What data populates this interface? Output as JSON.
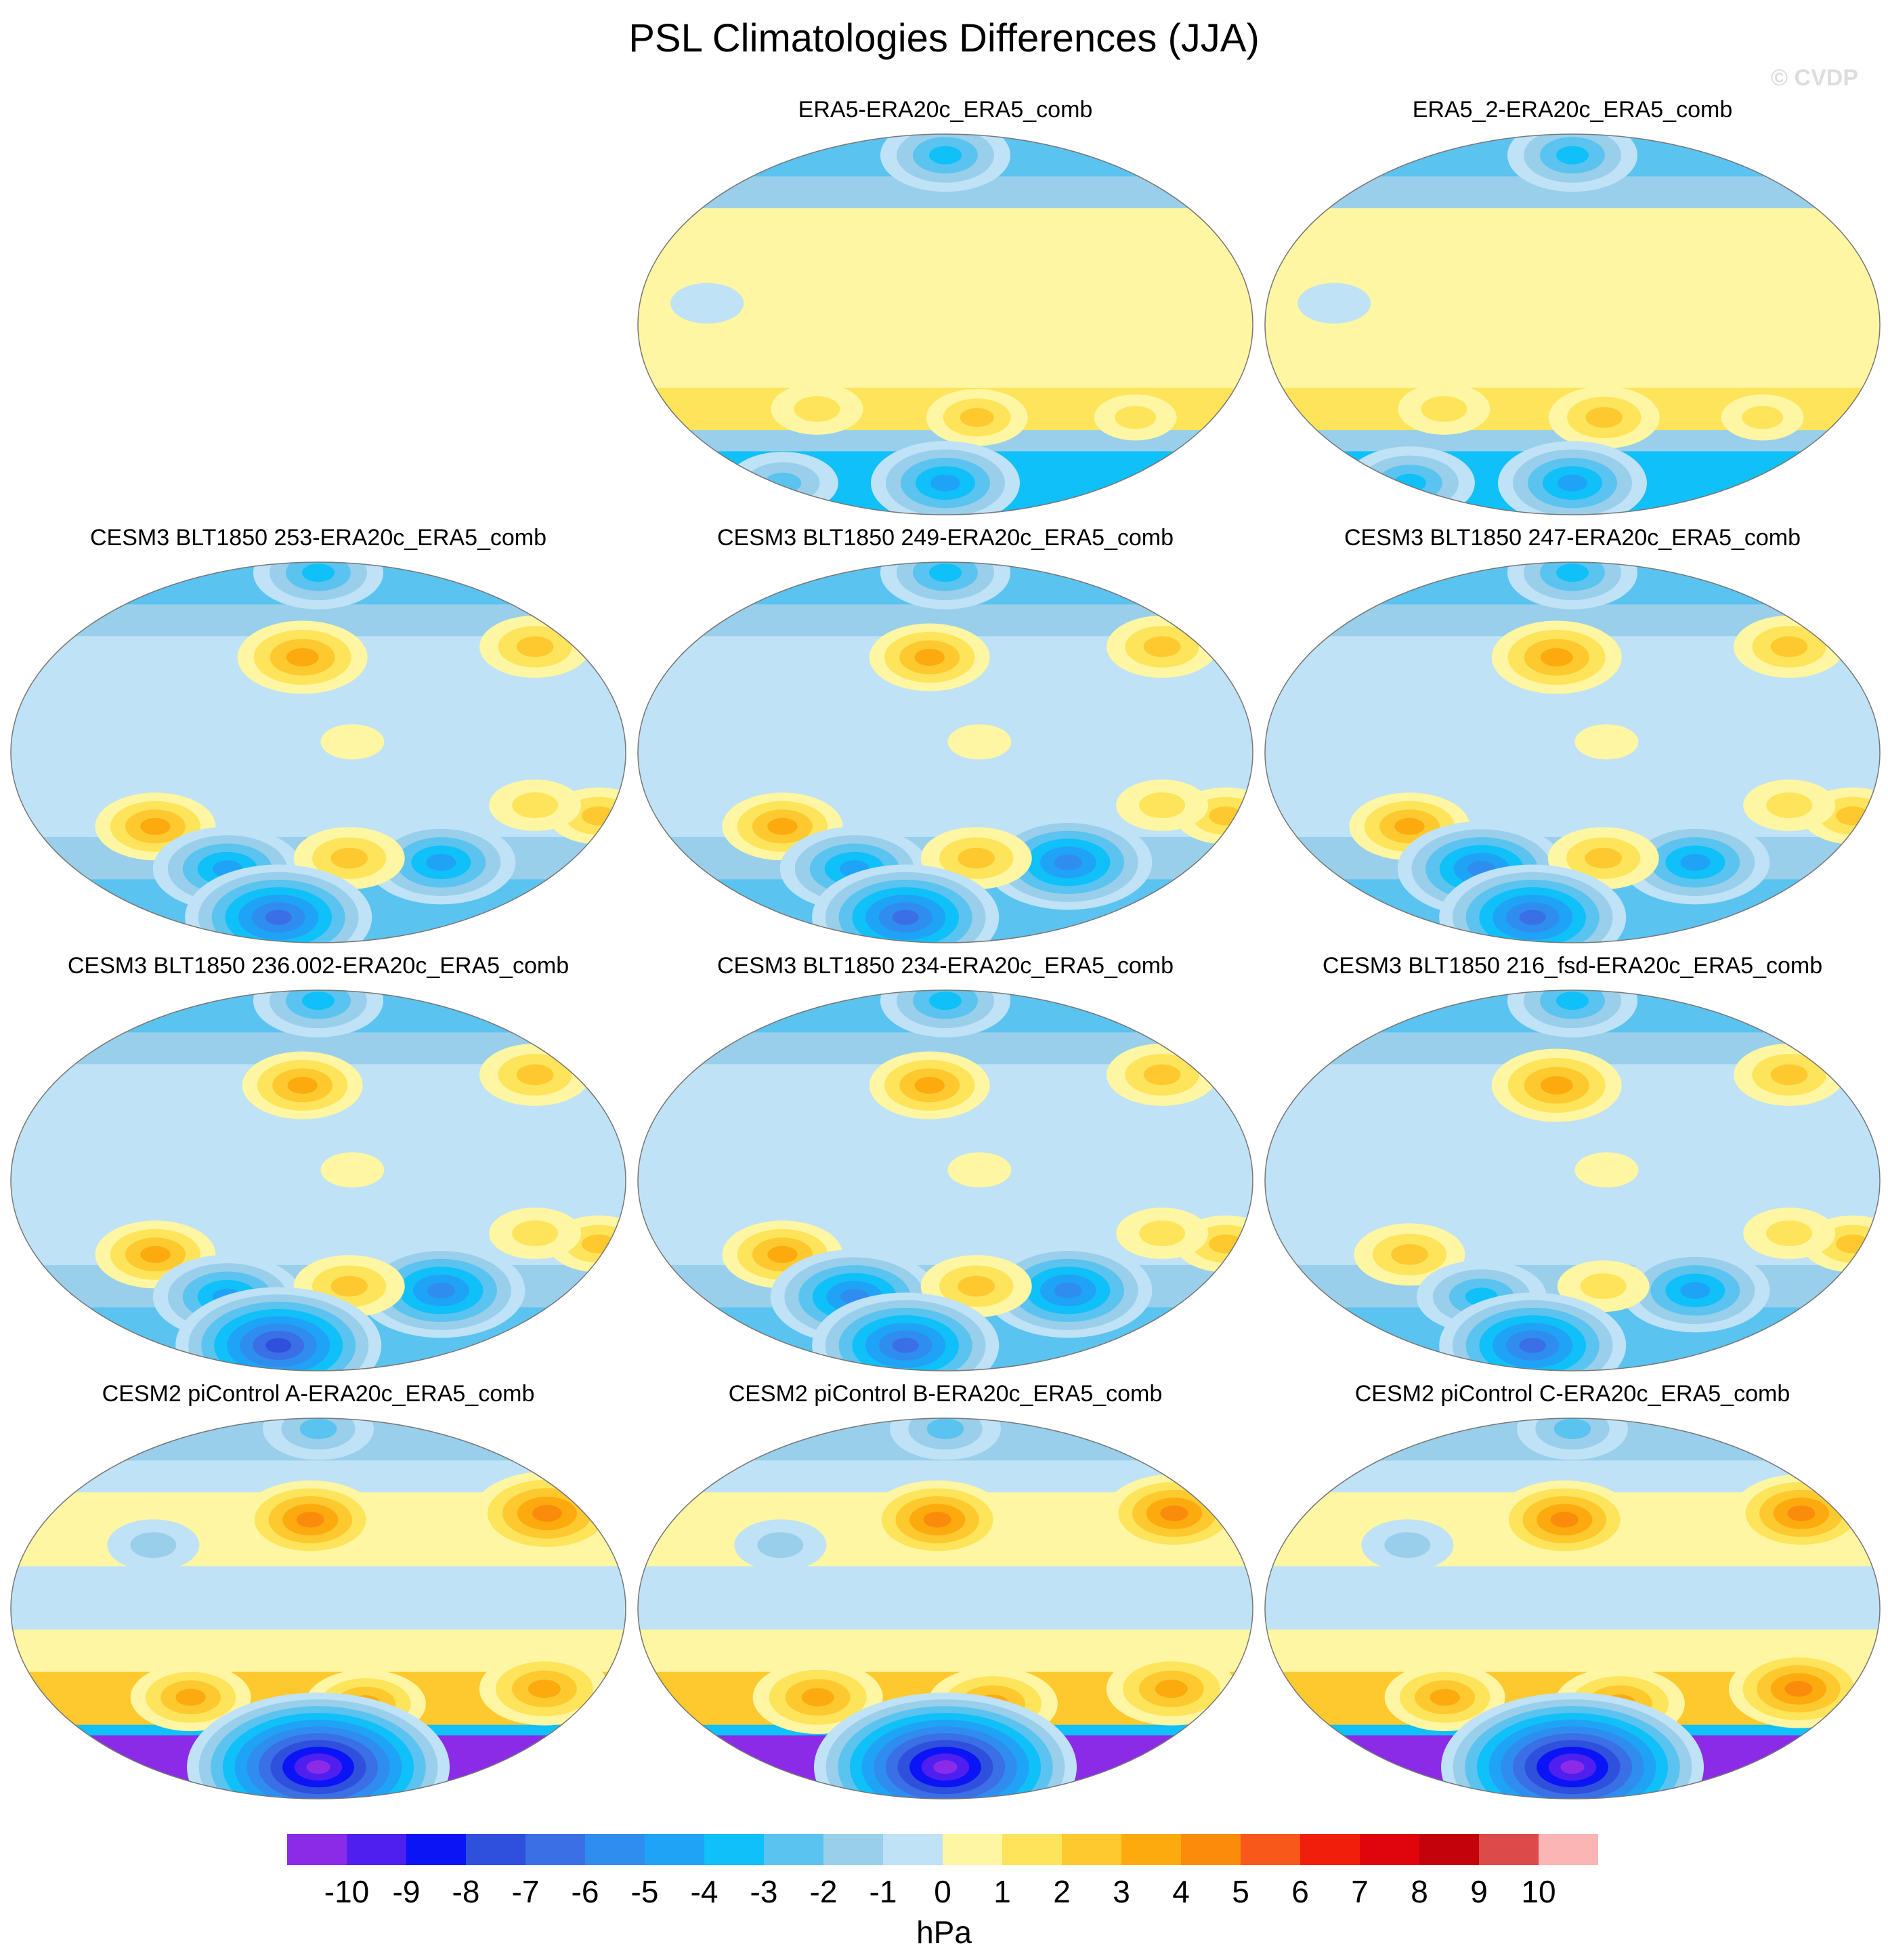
{
  "title": "PSL Climatologies Differences (JJA)",
  "watermark": "© CVDP",
  "chart_data": {
    "type": "heatmap",
    "projection": "Robinson-like global, Pacific centered",
    "season": "JJA",
    "panels": [
      {
        "title": "ERA5-ERA20c_ERA5_comb",
        "pattern": "obs",
        "features": [
          {
            "lon": 300,
            "lat": -44,
            "value": 1.5
          },
          {
            "lon": 200,
            "lat": -44,
            "value": 2.5
          },
          {
            "lon": 100,
            "lat": -40,
            "value": 2
          },
          {
            "lon": 180,
            "lat": -75,
            "value": -5
          },
          {
            "lon": 60,
            "lat": -75,
            "value": -3
          },
          {
            "lon": 180,
            "lat": 80,
            "value": -4
          },
          {
            "lon": 200,
            "lat": 30,
            "value": 0.5
          },
          {
            "lon": 40,
            "lat": 10,
            "value": -1
          }
        ]
      },
      {
        "title": "ERA5_2-ERA20c_ERA5_comb",
        "pattern": "obs",
        "features": [
          {
            "lon": 300,
            "lat": -44,
            "value": 1.5
          },
          {
            "lon": 200,
            "lat": -44,
            "value": 3
          },
          {
            "lon": 100,
            "lat": -40,
            "value": 2
          },
          {
            "lon": 180,
            "lat": -75,
            "value": -5
          },
          {
            "lon": 60,
            "lat": -75,
            "value": -4
          },
          {
            "lon": 180,
            "lat": 80,
            "value": -4
          },
          {
            "lon": 200,
            "lat": 30,
            "value": 0.5
          },
          {
            "lon": 40,
            "lat": 10,
            "value": -1
          }
        ]
      },
      {
        "title": "CESM3 BLT1850 253-ERA20c_ERA5_comb",
        "pattern": "cesm3",
        "features": [
          {
            "lon": 170,
            "lat": 45,
            "value": 4
          },
          {
            "lon": 320,
            "lat": 50,
            "value": 3
          },
          {
            "lon": 80,
            "lat": -35,
            "value": 3.5
          },
          {
            "lon": 350,
            "lat": -30,
            "value": 2.5
          },
          {
            "lon": 310,
            "lat": -25,
            "value": 2
          },
          {
            "lon": 200,
            "lat": 5,
            "value": 0.5
          },
          {
            "lon": 120,
            "lat": -55,
            "value": -5
          },
          {
            "lon": 260,
            "lat": -52,
            "value": -5
          },
          {
            "lon": 200,
            "lat": -50,
            "value": 3
          },
          {
            "lon": 150,
            "lat": -78,
            "value": -7
          },
          {
            "lon": 180,
            "lat": 85,
            "value": -4
          }
        ]
      },
      {
        "title": "CESM3 BLT1850 249-ERA20c_ERA5_comb",
        "pattern": "cesm3",
        "features": [
          {
            "lon": 170,
            "lat": 45,
            "value": 3.5
          },
          {
            "lon": 320,
            "lat": 50,
            "value": 3
          },
          {
            "lon": 80,
            "lat": -35,
            "value": 3.5
          },
          {
            "lon": 350,
            "lat": -30,
            "value": 2.5
          },
          {
            "lon": 310,
            "lat": -25,
            "value": 2
          },
          {
            "lon": 200,
            "lat": 5,
            "value": 0.5
          },
          {
            "lon": 120,
            "lat": -55,
            "value": -5
          },
          {
            "lon": 260,
            "lat": -52,
            "value": -6
          },
          {
            "lon": 200,
            "lat": -50,
            "value": 3
          },
          {
            "lon": 150,
            "lat": -78,
            "value": -7
          },
          {
            "lon": 180,
            "lat": 85,
            "value": -4
          }
        ]
      },
      {
        "title": "CESM3 BLT1850 247-ERA20c_ERA5_comb",
        "pattern": "cesm3",
        "features": [
          {
            "lon": 170,
            "lat": 45,
            "value": 4
          },
          {
            "lon": 320,
            "lat": 50,
            "value": 3
          },
          {
            "lon": 80,
            "lat": -35,
            "value": 3.5
          },
          {
            "lon": 350,
            "lat": -30,
            "value": 2.5
          },
          {
            "lon": 310,
            "lat": -25,
            "value": 2
          },
          {
            "lon": 200,
            "lat": 5,
            "value": 0.5
          },
          {
            "lon": 120,
            "lat": -55,
            "value": -6
          },
          {
            "lon": 260,
            "lat": -52,
            "value": -5
          },
          {
            "lon": 200,
            "lat": -50,
            "value": 3
          },
          {
            "lon": 150,
            "lat": -78,
            "value": -7
          },
          {
            "lon": 180,
            "lat": 85,
            "value": -4
          }
        ]
      },
      {
        "title": "CESM3 BLT1850 236.002-ERA20c_ERA5_comb",
        "pattern": "cesm3",
        "features": [
          {
            "lon": 170,
            "lat": 45,
            "value": 3.5
          },
          {
            "lon": 320,
            "lat": 50,
            "value": 3
          },
          {
            "lon": 80,
            "lat": -35,
            "value": 3.5
          },
          {
            "lon": 350,
            "lat": -30,
            "value": 2.5
          },
          {
            "lon": 310,
            "lat": -25,
            "value": 2
          },
          {
            "lon": 200,
            "lat": 5,
            "value": 0.5
          },
          {
            "lon": 120,
            "lat": -55,
            "value": -5
          },
          {
            "lon": 260,
            "lat": -52,
            "value": -6
          },
          {
            "lon": 200,
            "lat": -50,
            "value": 3
          },
          {
            "lon": 150,
            "lat": -78,
            "value": -8
          },
          {
            "lon": 180,
            "lat": 85,
            "value": -4
          }
        ]
      },
      {
        "title": "CESM3 BLT1850 234-ERA20c_ERA5_comb",
        "pattern": "cesm3",
        "features": [
          {
            "lon": 170,
            "lat": 45,
            "value": 3.5
          },
          {
            "lon": 320,
            "lat": 50,
            "value": 3
          },
          {
            "lon": 80,
            "lat": -35,
            "value": 3.5
          },
          {
            "lon": 350,
            "lat": -30,
            "value": 2.5
          },
          {
            "lon": 310,
            "lat": -25,
            "value": 2
          },
          {
            "lon": 200,
            "lat": 5,
            "value": 0.5
          },
          {
            "lon": 120,
            "lat": -55,
            "value": -6
          },
          {
            "lon": 260,
            "lat": -52,
            "value": -6
          },
          {
            "lon": 200,
            "lat": -50,
            "value": 3
          },
          {
            "lon": 150,
            "lat": -78,
            "value": -7
          },
          {
            "lon": 180,
            "lat": 85,
            "value": -4
          }
        ]
      },
      {
        "title": "CESM3 BLT1850 216_fsd-ERA20c_ERA5_comb",
        "pattern": "cesm3",
        "features": [
          {
            "lon": 170,
            "lat": 45,
            "value": 4
          },
          {
            "lon": 320,
            "lat": 50,
            "value": 3
          },
          {
            "lon": 80,
            "lat": -35,
            "value": 3
          },
          {
            "lon": 350,
            "lat": -30,
            "value": 2.5
          },
          {
            "lon": 310,
            "lat": -25,
            "value": 2
          },
          {
            "lon": 200,
            "lat": 5,
            "value": 0.5
          },
          {
            "lon": 120,
            "lat": -55,
            "value": -4
          },
          {
            "lon": 260,
            "lat": -52,
            "value": -5
          },
          {
            "lon": 200,
            "lat": -50,
            "value": 2
          },
          {
            "lon": 150,
            "lat": -78,
            "value": -7
          },
          {
            "lon": 180,
            "lat": 85,
            "value": -4
          }
        ]
      },
      {
        "title": "CESM2 piControl A-ERA20c_ERA5_comb",
        "pattern": "cesm2",
        "features": [
          {
            "lon": 175,
            "lat": 42,
            "value": 4.5
          },
          {
            "lon": 325,
            "lat": 45,
            "value": 5
          },
          {
            "lon": 100,
            "lat": -42,
            "value": 3.5
          },
          {
            "lon": 210,
            "lat": -45,
            "value": 3.5
          },
          {
            "lon": 320,
            "lat": -38,
            "value": 4
          },
          {
            "lon": 180,
            "lat": -75,
            "value": -11
          },
          {
            "lon": 180,
            "lat": 85,
            "value": -3
          },
          {
            "lon": 80,
            "lat": 30,
            "value": -2
          }
        ]
      },
      {
        "title": "CESM2 piControl B-ERA20c_ERA5_comb",
        "pattern": "cesm2",
        "features": [
          {
            "lon": 175,
            "lat": 42,
            "value": 4.5
          },
          {
            "lon": 325,
            "lat": 45,
            "value": 4.5
          },
          {
            "lon": 100,
            "lat": -42,
            "value": 4
          },
          {
            "lon": 210,
            "lat": -45,
            "value": 4
          },
          {
            "lon": 320,
            "lat": -38,
            "value": 4
          },
          {
            "lon": 180,
            "lat": -75,
            "value": -11
          },
          {
            "lon": 180,
            "lat": 85,
            "value": -3
          },
          {
            "lon": 80,
            "lat": 30,
            "value": -2
          }
        ]
      },
      {
        "title": "CESM2 piControl C-ERA20c_ERA5_comb",
        "pattern": "cesm2",
        "features": [
          {
            "lon": 175,
            "lat": 42,
            "value": 4.5
          },
          {
            "lon": 325,
            "lat": 45,
            "value": 4.5
          },
          {
            "lon": 100,
            "lat": -42,
            "value": 3.5
          },
          {
            "lon": 210,
            "lat": -45,
            "value": 4
          },
          {
            "lon": 320,
            "lat": -38,
            "value": 4.5
          },
          {
            "lon": 180,
            "lat": -75,
            "value": -11
          },
          {
            "lon": 180,
            "lat": 85,
            "value": -3
          },
          {
            "lon": 80,
            "lat": 30,
            "value": -2
          }
        ]
      }
    ],
    "colorbar": {
      "unit": "hPa",
      "tick_labels": [
        "-10",
        "-9",
        "-8",
        "-7",
        "-6",
        "-5",
        "-4",
        "-3",
        "-2",
        "-1",
        "0",
        "1",
        "2",
        "3",
        "4",
        "5",
        "6",
        "7",
        "8",
        "9",
        "10"
      ],
      "levels": [
        -10,
        -9,
        -8,
        -7,
        -6,
        -5,
        -4,
        -3,
        -2,
        -1,
        0,
        1,
        2,
        3,
        4,
        5,
        6,
        7,
        8,
        9,
        10
      ],
      "colors": [
        "#8b2be8",
        "#4f1ff0",
        "#0a14f5",
        "#2e50dc",
        "#3a6fe6",
        "#2f8df0",
        "#1ea3f7",
        "#10c0f8",
        "#5bc3ef",
        "#99cfea",
        "#bfe2f6",
        "#fef6a2",
        "#fde45b",
        "#fdc92f",
        "#fdaa0f",
        "#fb8c0b",
        "#f9581b",
        "#f21e0c",
        "#e0040c",
        "#c4020c",
        "#dc4a4a",
        "#fbb5b5"
      ]
    }
  }
}
